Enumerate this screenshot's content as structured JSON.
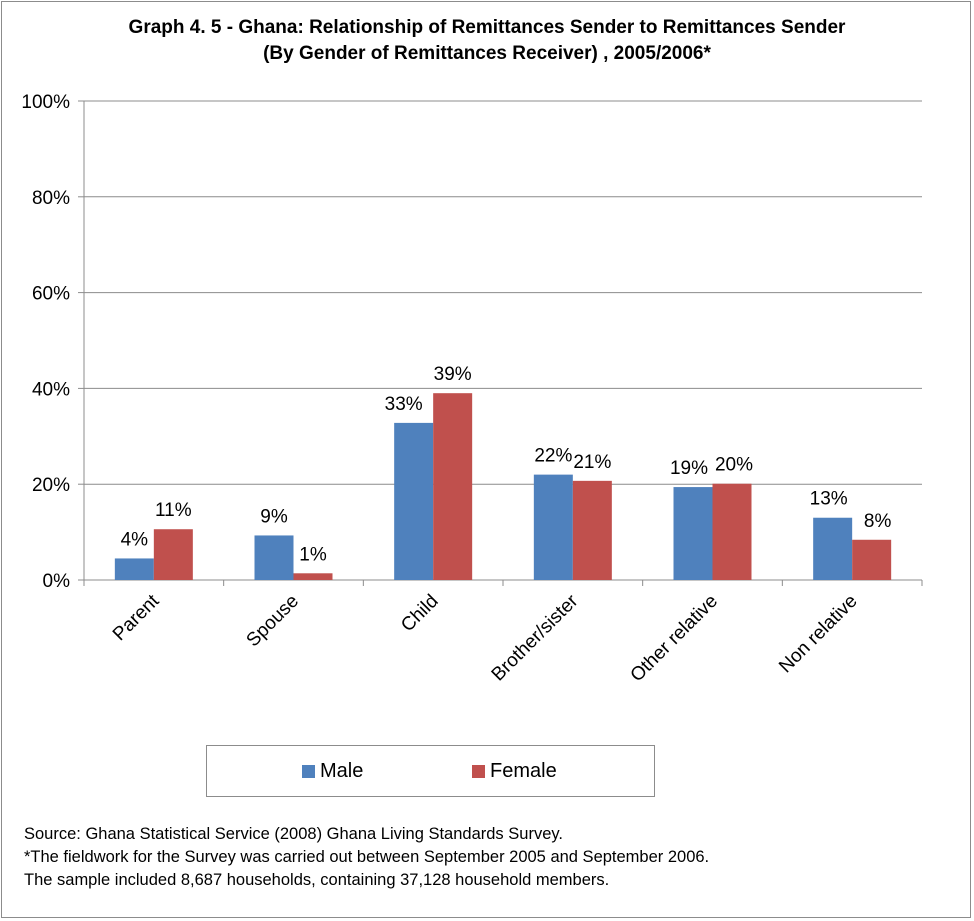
{
  "chart_data": {
    "type": "bar",
    "title": "Graph 4. 5 - Ghana: Relationship of Remittances Sender to Remittances Sender",
    "subtitle": "(By Gender of Remittances Receiver) , 2005/2006*",
    "categories": [
      "Parent",
      "Spouse",
      "Child",
      "Brother/sister",
      "Other relative",
      "Non relative"
    ],
    "series": [
      {
        "name": "Male",
        "values": [
          4.5,
          9.3,
          32.8,
          22.0,
          19.4,
          13.0
        ],
        "labels": [
          "4%",
          "9%",
          "33%",
          "22%",
          "19%",
          "13%"
        ],
        "color": "#4f81bd"
      },
      {
        "name": "Female",
        "values": [
          10.6,
          1.4,
          39.0,
          20.7,
          20.1,
          8.4
        ],
        "labels": [
          "11%",
          "1%",
          "39%",
          "21%",
          "20%",
          "8%"
        ],
        "color": "#c0504d"
      }
    ],
    "ylim": [
      0,
      100
    ],
    "yticks": [
      "0%",
      "20%",
      "40%",
      "60%",
      "80%",
      "100%"
    ],
    "grid": true,
    "legend_position": "bottom"
  },
  "notes": {
    "source": "Source: Ghana Statistical Service (2008) Ghana Living Standards Survey.",
    "fieldwork": "*The fieldwork for the Survey was carried out between September 2005 and September 2006.",
    "sample": "The sample  included 8,687 households, containing 37,128 household members."
  }
}
